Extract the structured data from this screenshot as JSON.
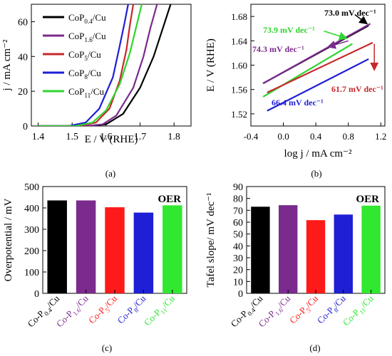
{
  "colors": {
    "black": "#000000",
    "purple": "#7b2a8e",
    "red": "#c8282a",
    "blue": "#1f1fd6",
    "green": "#2fd42f"
  },
  "chart_data": [
    {
      "panel": "(a)",
      "type": "line",
      "xlabel": "E / V (RHE)",
      "ylabel": "j / mA cm⁻²",
      "xlim": [
        1.38,
        1.85
      ],
      "ylim": [
        0,
        70
      ],
      "xticks": [
        "1.4",
        "1.5",
        "1.6",
        "1.7",
        "1.8"
      ],
      "yticks": [
        "0",
        "20",
        "40",
        "60"
      ],
      "legend_position": "top-left",
      "series": [
        {
          "name": "CoP0.4/Cu",
          "legend": [
            "CoP",
            "0.4",
            "/Cu"
          ],
          "color": "#000000",
          "x": [
            1.4,
            1.55,
            1.6,
            1.65,
            1.7,
            1.74,
            1.77,
            1.79
          ],
          "y": [
            0,
            0,
            1,
            7,
            22,
            40,
            58,
            70
          ]
        },
        {
          "name": "CoP1.6/Cu",
          "legend": [
            "CoP",
            "1.6",
            "/Cu"
          ],
          "color": "#7b2a8e",
          "x": [
            1.4,
            1.54,
            1.59,
            1.63,
            1.68,
            1.71,
            1.73,
            1.75
          ],
          "y": [
            0,
            0,
            1,
            6,
            22,
            40,
            56,
            70
          ]
        },
        {
          "name": "CoP5/Cu",
          "legend": [
            "CoP",
            "5",
            "/Cu"
          ],
          "color": "#c8282a",
          "x": [
            1.4,
            1.52,
            1.57,
            1.61,
            1.64,
            1.66,
            1.67,
            1.68
          ],
          "y": [
            0,
            0,
            2,
            10,
            26,
            44,
            58,
            70
          ]
        },
        {
          "name": "CoP8/Cu",
          "legend": [
            "CoP",
            "8",
            "/Cu"
          ],
          "color": "#1f1fd6",
          "x": [
            1.4,
            1.49,
            1.54,
            1.58,
            1.62,
            1.64,
            1.655,
            1.665
          ],
          "y": [
            0,
            0,
            2,
            10,
            28,
            46,
            60,
            70
          ]
        },
        {
          "name": "CoP11/Cu",
          "legend": [
            "CoP",
            "11",
            "/Cu"
          ],
          "color": "#2fd42f",
          "x": [
            1.4,
            1.51,
            1.56,
            1.6,
            1.64,
            1.67,
            1.69,
            1.705
          ],
          "y": [
            0,
            0,
            2,
            9,
            24,
            42,
            58,
            70
          ]
        }
      ]
    },
    {
      "panel": "(b)",
      "type": "line",
      "xlabel": "log j / mA cm⁻²",
      "ylabel": "E / V (RHE)",
      "xlim": [
        -0.4,
        1.25
      ],
      "ylim": [
        1.5,
        1.7
      ],
      "xticks": [
        "-0.4",
        "0.0",
        "0.4",
        "0.8",
        "1.2"
      ],
      "yticks": [
        "1.52",
        "1.56",
        "1.60",
        "1.64",
        "1.68"
      ],
      "series": [
        {
          "color": "#000000",
          "x": [
            -0.25,
            1.05
          ],
          "y": [
            1.57,
            1.665
          ]
        },
        {
          "color": "#7b2a8e",
          "x": [
            -0.25,
            1.07
          ],
          "y": [
            1.57,
            1.668
          ]
        },
        {
          "color": "#2fd42f",
          "x": [
            -0.25,
            0.85
          ],
          "y": [
            1.548,
            1.635
          ]
        },
        {
          "color": "#c8282a",
          "x": [
            -0.2,
            1.1
          ],
          "y": [
            1.555,
            1.637
          ]
        },
        {
          "color": "#1f1fd6",
          "x": [
            -0.2,
            1.05
          ],
          "y": [
            1.525,
            1.61
          ]
        }
      ],
      "annotations": [
        {
          "text": "73.0 mV dec⁻¹",
          "color": "#000000",
          "arrow_from": [
            0.88,
            1.683
          ],
          "arrow_to": [
            1.03,
            1.668
          ]
        },
        {
          "text": "73.9 mV dec⁻¹",
          "color": "#2fd42f",
          "arrow_from": [
            0.5,
            1.656
          ],
          "arrow_to": [
            0.78,
            1.644
          ]
        },
        {
          "text": "74.3 mV dec⁻¹",
          "color": "#7b2a8e",
          "arrow_from": [
            0.8,
            1.64
          ],
          "arrow_to": [
            0.55,
            1.63
          ]
        },
        {
          "text": "61.7 mV dec⁻¹",
          "color": "#c8282a",
          "arrow_from": [
            1.12,
            1.635
          ],
          "arrow_to": [
            1.12,
            1.592
          ]
        },
        {
          "text": "66.4 mV dec⁻¹",
          "color": "#1f1fd6"
        }
      ]
    },
    {
      "panel": "(c)",
      "type": "bar",
      "ylabel": "Overpotential / mV",
      "ylim": [
        0,
        500
      ],
      "yticks": [
        "0",
        "100",
        "200",
        "300",
        "400",
        "500"
      ],
      "annotation": "OER",
      "categories": [
        "Co-P0.4/Cu",
        "Co-P1.6/Cu",
        "Co-P5/Cu",
        "Co-P8/Cu",
        "Co-P11/Cu"
      ],
      "labels": [
        [
          "Co-P",
          "0.4",
          "/Cu"
        ],
        [
          "Co-P",
          "1.6",
          "/Cu"
        ],
        [
          "Co-P",
          "5",
          "/Cu"
        ],
        [
          "Co-P",
          "8",
          "/Cu"
        ],
        [
          "Co-P",
          "11",
          "/Cu"
        ]
      ],
      "values": [
        435,
        435,
        403,
        378,
        412
      ],
      "colors": [
        "#000000",
        "#7b2a8e",
        "#ff1a1a",
        "#1f1fd6",
        "#2fe82f"
      ]
    },
    {
      "panel": "(d)",
      "type": "bar",
      "ylabel": "Tafel slope/ mV dec⁻¹",
      "ylim": [
        0,
        90
      ],
      "yticks": [
        "0",
        "10",
        "20",
        "30",
        "40",
        "50",
        "60",
        "70",
        "80",
        "90"
      ],
      "annotation": "OER",
      "categories": [
        "Co-P0.4/Cu",
        "Co-P1.6/Cu",
        "Co-P5/Cu",
        "Co-P8/Cu",
        "Co-P11/Cu"
      ],
      "labels": [
        [
          "Co-P",
          "0.4",
          "/Cu"
        ],
        [
          "Co-P",
          "1.6",
          "/Cu"
        ],
        [
          "Co-P",
          "5",
          "/Cu"
        ],
        [
          "Co-P",
          "8",
          "/Cu"
        ],
        [
          "Co-P",
          "11",
          "/Cu"
        ]
      ],
      "values": [
        73.0,
        74.3,
        61.7,
        66.4,
        73.9
      ],
      "colors": [
        "#000000",
        "#7b2a8e",
        "#ff1a1a",
        "#1f1fd6",
        "#2fe82f"
      ]
    }
  ],
  "panel_labels": [
    "(a)",
    "(b)",
    "(c)",
    "(d)"
  ]
}
